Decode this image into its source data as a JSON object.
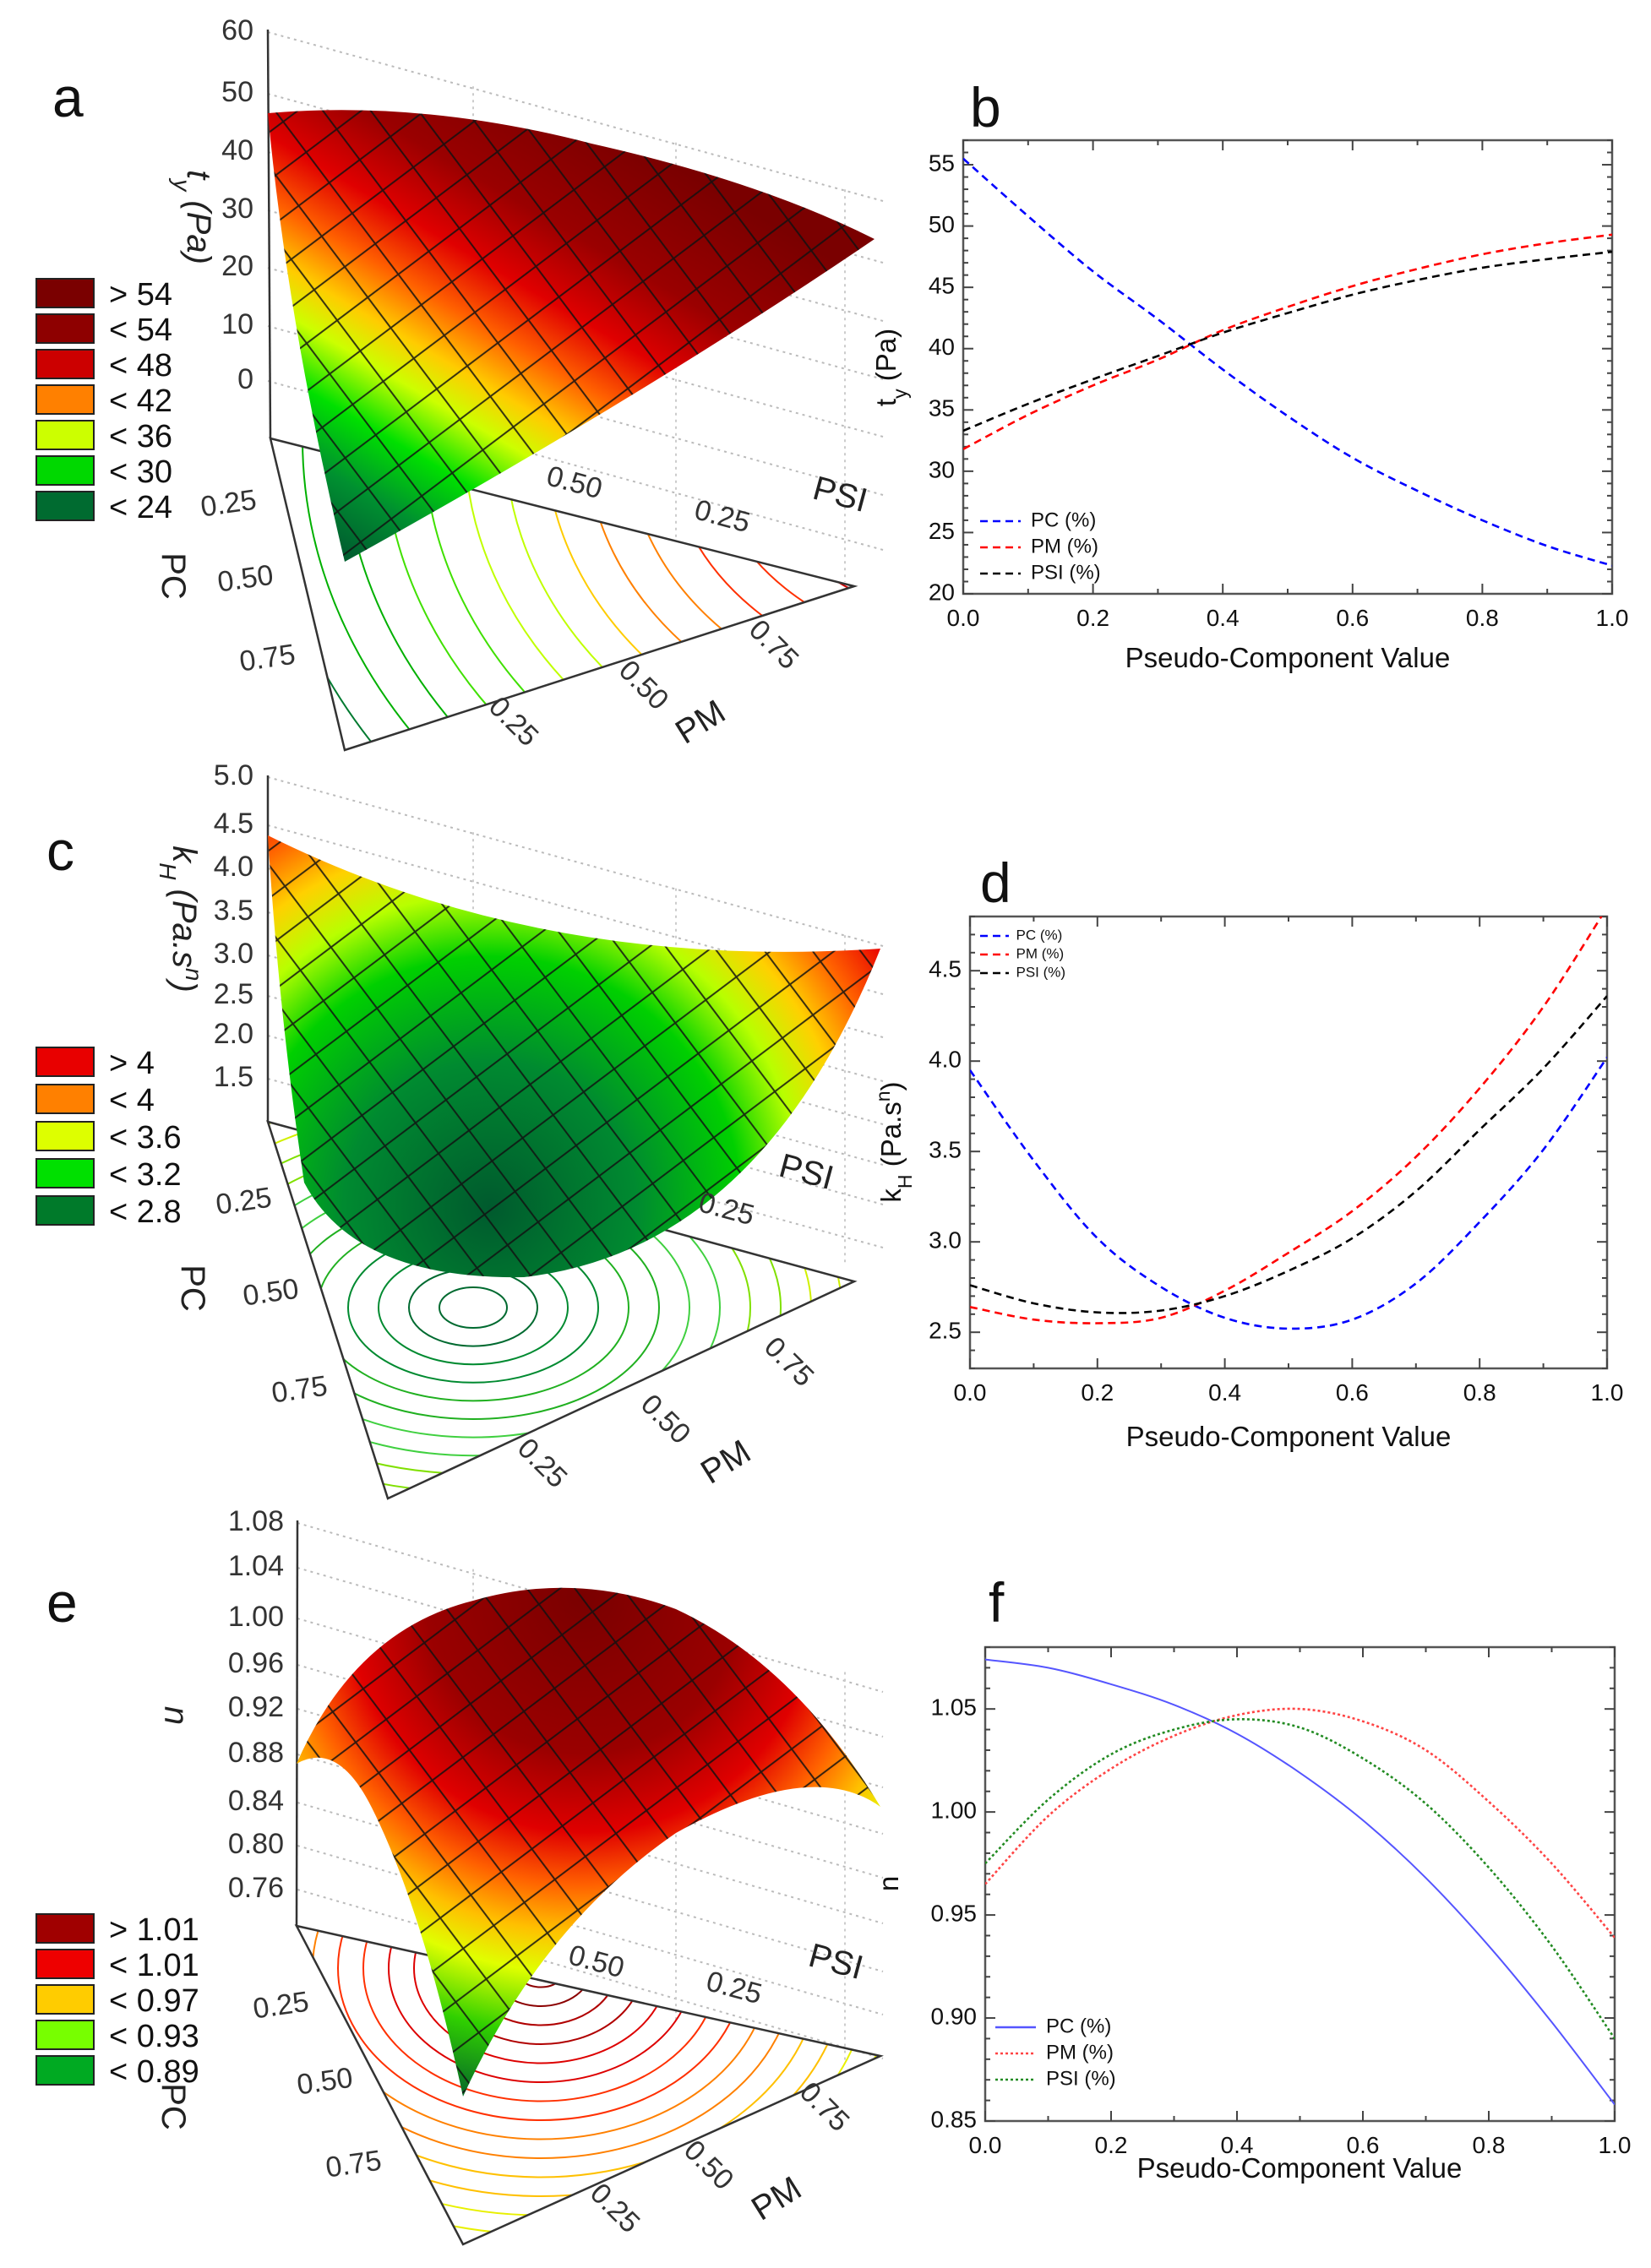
{
  "panel_labels": {
    "a": "a",
    "b": "b",
    "c": "c",
    "d": "d",
    "e": "e",
    "f": "f"
  },
  "surface_plots": [
    {
      "panel": "a",
      "z_title": {
        "main": "t",
        "sub": "y",
        "rest": " (Pa)"
      },
      "z_ticks": [
        "60",
        "50",
        "40",
        "30",
        "20",
        "10",
        "0"
      ],
      "axes": {
        "psi": "PSI",
        "pc": "PC",
        "pm": "PM"
      },
      "psi_ticks": [
        "0.50",
        "0.25"
      ],
      "pc_ticks": [
        "0.25",
        "0.50",
        "0.75"
      ],
      "pm_ticks": [
        "0.25",
        "0.50",
        "0.75"
      ],
      "legend": [
        {
          "label": "> 54",
          "color": "#7a0000"
        },
        {
          "label": "< 54",
          "color": "#8e0000"
        },
        {
          "label": "< 48",
          "color": "#cc0000"
        },
        {
          "label": "< 42",
          "color": "#ff8000"
        },
        {
          "label": "< 36",
          "color": "#ccff00"
        },
        {
          "label": "< 30",
          "color": "#00d800"
        },
        {
          "label": "< 24",
          "color": "#006b30"
        }
      ]
    },
    {
      "panel": "c",
      "z_title": {
        "main": "k",
        "sub": "H",
        "rest": " (Pa.s",
        "sup": "n",
        "end": ")"
      },
      "z_ticks": [
        "5.0",
        "4.5",
        "4.0",
        "3.5",
        "3.0",
        "2.5",
        "2.0",
        "1.5"
      ],
      "axes": {
        "psi": "PSI",
        "pc": "PC",
        "pm": "PM"
      },
      "psi_ticks": [
        "0.25"
      ],
      "pc_ticks": [
        "0.25",
        "0.50",
        "0.75"
      ],
      "pm_ticks": [
        "0.25",
        "0.50",
        "0.75"
      ],
      "legend": [
        {
          "label": "> 4",
          "color": "#e80000"
        },
        {
          "label": "< 4",
          "color": "#ff8000"
        },
        {
          "label": "< 3.6",
          "color": "#ddff00"
        },
        {
          "label": "< 3.2",
          "color": "#00e000"
        },
        {
          "label": "< 2.8",
          "color": "#007a2a"
        }
      ]
    },
    {
      "panel": "e",
      "z_title": {
        "main": "n"
      },
      "z_ticks": [
        "1.08",
        "1.04",
        "1.00",
        "0.96",
        "0.92",
        "0.88",
        "0.84",
        "0.80",
        "0.76"
      ],
      "axes": {
        "psi": "PSI",
        "pc": "PC",
        "pm": "PM"
      },
      "psi_ticks": [
        "0.50",
        "0.25"
      ],
      "pc_ticks": [
        "0.25",
        "0.50",
        "0.75"
      ],
      "pm_ticks": [
        "0.25",
        "0.50",
        "0.75"
      ],
      "legend": [
        {
          "label": "> 1.01",
          "color": "#a00000"
        },
        {
          "label": "< 1.01",
          "color": "#ee0000"
        },
        {
          "label": "< 0.97",
          "color": "#ffcc00"
        },
        {
          "label": "< 0.93",
          "color": "#77ff00"
        },
        {
          "label": "< 0.89",
          "color": "#00aa22"
        }
      ]
    }
  ],
  "chart_data": [
    {
      "panel": "b",
      "type": "line",
      "xlabel": "Pseudo-Component Value",
      "ylabel": {
        "main": "t",
        "sub": "y",
        "rest": " (Pa)"
      },
      "xlim": [
        0,
        1
      ],
      "ylim": [
        20,
        57
      ],
      "xticks": [
        0,
        0.2,
        0.4,
        0.6,
        0.8,
        1.0
      ],
      "xtick_labels": [
        "0.0",
        "0.2",
        "0.4",
        "0.6",
        "0.8",
        "1.0"
      ],
      "yticks": [
        20,
        25,
        30,
        35,
        40,
        45,
        50,
        55
      ],
      "ytick_labels": [
        "20",
        "25",
        "30",
        "35",
        "40",
        "45",
        "50",
        "55"
      ],
      "legend_position": "bottom-left",
      "x": [
        0,
        0.1,
        0.2,
        0.3,
        0.4,
        0.5,
        0.6,
        0.7,
        0.8,
        0.9,
        1.0
      ],
      "series": [
        {
          "name": "PC (%)",
          "color": "#0000ff",
          "style": "dashed",
          "values": [
            55.5,
            50.8,
            46.3,
            42.4,
            38.3,
            34.5,
            31.1,
            28.4,
            26.0,
            23.9,
            22.3
          ]
        },
        {
          "name": "PM (%)",
          "color": "#ff0000",
          "style": "dashed",
          "values": [
            31.8,
            34.6,
            37.0,
            39.1,
            41.5,
            43.4,
            45.1,
            46.5,
            47.7,
            48.6,
            49.3
          ]
        },
        {
          "name": "PSI (%)",
          "color": "#000000",
          "style": "dashed",
          "values": [
            33.3,
            35.5,
            37.5,
            39.4,
            41.3,
            42.9,
            44.4,
            45.6,
            46.6,
            47.3,
            47.9
          ]
        }
      ]
    },
    {
      "panel": "d",
      "type": "line",
      "xlabel": "Pseudo-Component Value",
      "ylabel": {
        "main": "k",
        "sub": "H",
        "rest": " (Pa.s",
        "sup": "n",
        "end": ")"
      },
      "xlim": [
        0,
        1
      ],
      "ylim": [
        2.3,
        4.8
      ],
      "xticks": [
        0,
        0.2,
        0.4,
        0.6,
        0.8,
        1.0
      ],
      "xtick_labels": [
        "0.0",
        "0.2",
        "0.4",
        "0.6",
        "0.8",
        "1.0"
      ],
      "yticks": [
        2.5,
        3.0,
        3.5,
        4.0,
        4.5
      ],
      "ytick_labels": [
        "2.5",
        "3.0",
        "3.5",
        "4.0",
        "4.5"
      ],
      "legend_position": "top-left",
      "x": [
        0,
        0.1,
        0.2,
        0.3,
        0.4,
        0.5,
        0.6,
        0.7,
        0.8,
        0.9,
        1.0
      ],
      "series": [
        {
          "name": "PC (%)",
          "color": "#0000ff",
          "style": "dashed",
          "values": [
            3.95,
            3.45,
            3.02,
            2.75,
            2.58,
            2.52,
            2.57,
            2.77,
            3.11,
            3.51,
            4.02
          ]
        },
        {
          "name": "PM (%)",
          "color": "#ff0000",
          "style": "dashed",
          "values": [
            2.64,
            2.57,
            2.55,
            2.58,
            2.73,
            2.94,
            3.17,
            3.47,
            3.85,
            4.3,
            4.85
          ]
        },
        {
          "name": "PSI (%)",
          "color": "#000000",
          "style": "dashed",
          "values": [
            2.76,
            2.66,
            2.61,
            2.62,
            2.7,
            2.84,
            3.02,
            3.28,
            3.62,
            3.96,
            4.36
          ]
        }
      ]
    },
    {
      "panel": "f",
      "type": "line",
      "xlabel": "Pseudo-Component Value",
      "ylabel": {
        "main": "n"
      },
      "xlim": [
        0,
        1
      ],
      "ylim": [
        0.85,
        1.08
      ],
      "xticks": [
        0,
        0.2,
        0.4,
        0.6,
        0.8,
        1.0
      ],
      "xtick_labels": [
        "0.0",
        "0.2",
        "0.4",
        "0.6",
        "0.8",
        "1.0"
      ],
      "yticks": [
        0.85,
        0.9,
        0.95,
        1.0,
        1.05
      ],
      "ytick_labels": [
        "0.85",
        "0.90",
        "0.95",
        "1.00",
        "1.05"
      ],
      "legend_position": "bottom-left",
      "x": [
        0,
        0.1,
        0.2,
        0.3,
        0.4,
        0.5,
        0.6,
        0.7,
        0.8,
        0.9,
        1.0
      ],
      "series": [
        {
          "name": "PC (%)",
          "color": "#5555ff",
          "style": "solid",
          "values": [
            1.074,
            1.07,
            1.062,
            1.052,
            1.038,
            1.019,
            0.996,
            0.968,
            0.935,
            0.898,
            0.858
          ]
        },
        {
          "name": "PM (%)",
          "color": "#ff4444",
          "style": "dotted",
          "values": [
            0.965,
            0.998,
            1.021,
            1.037,
            1.047,
            1.05,
            1.044,
            1.03,
            1.005,
            0.975,
            0.939
          ]
        },
        {
          "name": "PSI (%)",
          "color": "#228b22",
          "style": "dotted",
          "values": [
            0.975,
            1.006,
            1.028,
            1.04,
            1.045,
            1.041,
            1.026,
            1.004,
            0.973,
            0.935,
            0.89
          ]
        }
      ]
    }
  ]
}
